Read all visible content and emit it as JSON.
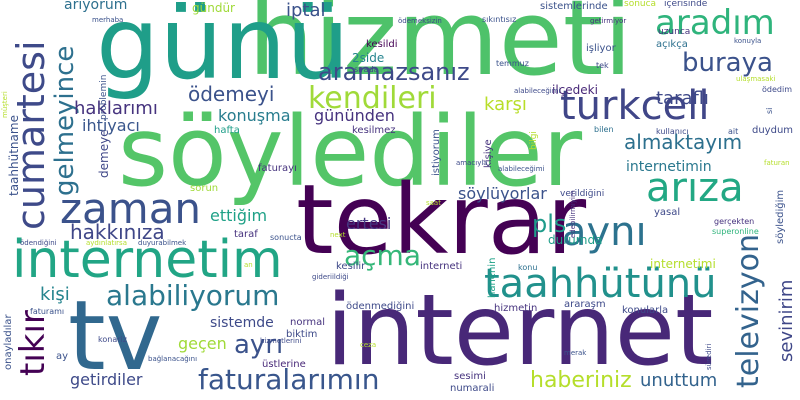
{
  "words": [
    {
      "text": "hizmeti",
      "color": "#4ec26a"
    },
    {
      "text": "günü",
      "color": "#1f9e89"
    },
    {
      "text": "söylediler",
      "color": "#54c568"
    },
    {
      "text": "tekrar",
      "color": "#440154"
    },
    {
      "text": "internet",
      "color": "#482878"
    },
    {
      "text": "tv",
      "color": "#31688e"
    },
    {
      "text": "internetim",
      "color": "#21a585"
    },
    {
      "text": "cumartesi",
      "color": "#3e4a89"
    },
    {
      "text": "zaman",
      "color": "#3b528b"
    },
    {
      "text": "turkcell",
      "color": "#404688"
    },
    {
      "text": "arıza",
      "color": "#22a884"
    },
    {
      "text": "aynı",
      "color": "#2c728e"
    },
    {
      "text": "taahhütünü",
      "color": "#21918c"
    },
    {
      "text": "kendileri",
      "color": "#a0da39"
    },
    {
      "text": "alabiliyorum",
      "color": "#2a788e"
    },
    {
      "text": "faturalarımın",
      "color": "#39568c"
    },
    {
      "text": "aradım",
      "color": "#2fb47c"
    },
    {
      "text": "buraya",
      "color": "#3b528b"
    },
    {
      "text": "aramazsanız",
      "color": "#3e4a89"
    },
    {
      "text": "gelmeyince",
      "color": "#2d708e"
    },
    {
      "text": "televizyon",
      "color": "#33638d"
    },
    {
      "text": "açma",
      "color": "#35b779"
    },
    {
      "text": "tıkır",
      "color": "#440154"
    },
    {
      "text": "ayrı",
      "color": "#3b528b"
    },
    {
      "text": "hakkınıza",
      "color": "#3f4788"
    },
    {
      "text": "haberiniz",
      "color": "#b5de2b"
    },
    {
      "text": "almaktayım",
      "color": "#2d708e"
    },
    {
      "text": "sevinirim",
      "color": "#3f4788"
    },
    {
      "text": "ödemeyi",
      "color": "#3b528b"
    },
    {
      "text": "haklarımı",
      "color": "#46337e"
    },
    {
      "text": "ihtiyacı",
      "color": "#39568c"
    },
    {
      "text": "konuşma",
      "color": "#287d8e"
    },
    {
      "text": "gününden",
      "color": "#46327e"
    },
    {
      "text": "karşı",
      "color": "#b8de29"
    },
    {
      "text": "taraflı",
      "color": "#3e4989"
    },
    {
      "text": "internetimin",
      "color": "#2a788e"
    },
    {
      "text": "söylüyorlar",
      "color": "#3b528b"
    },
    {
      "text": "ertesi",
      "color": "#453781"
    },
    {
      "text": "pls",
      "color": "#1e9b8a"
    },
    {
      "text": "ettiğim",
      "color": "#1fa187"
    },
    {
      "text": "kişi",
      "color": "#25848e"
    },
    {
      "text": "sistemde",
      "color": "#3e4a89"
    },
    {
      "text": "geçen",
      "color": "#a0da39"
    },
    {
      "text": "getirdiler",
      "color": "#3e4a89"
    },
    {
      "text": "unuttum",
      "color": "#33638d"
    },
    {
      "text": "iptal",
      "color": "#3b528b"
    },
    {
      "text": "ariyorum",
      "color": "#2d708e"
    },
    {
      "text": "gündür",
      "color": "#a0da39"
    },
    {
      "text": "kesildi",
      "color": "#440154"
    },
    {
      "text": "2side",
      "color": "#25848e"
    },
    {
      "text": "sırada",
      "color": "#3e4a89"
    },
    {
      "text": "ilçedeki",
      "color": "#482878"
    },
    {
      "text": "temmuz",
      "color": "#3b528b"
    },
    {
      "text": "kesilmez",
      "color": "#46337e"
    },
    {
      "text": "hafta",
      "color": "#1f9e89"
    },
    {
      "text": "taahhütname",
      "color": "#3b528b"
    },
    {
      "text": "demeye",
      "color": "#3f4788"
    },
    {
      "text": "faturayı",
      "color": "#46337e"
    },
    {
      "text": "sorun",
      "color": "#a0da39"
    },
    {
      "text": "taraf",
      "color": "#46327e"
    },
    {
      "text": "durumda",
      "color": "#1f9e89"
    },
    {
      "text": "yasal",
      "color": "#3e4989"
    },
    {
      "text": "gerçekten",
      "color": "#46327e"
    },
    {
      "text": "superonline",
      "color": "#2fb47c"
    },
    {
      "text": "söylediğim",
      "color": "#3b528b"
    },
    {
      "text": "kesilir",
      "color": "#3e4a89"
    },
    {
      "text": "interneti",
      "color": "#46337e"
    },
    {
      "text": "konu",
      "color": "#2d708e"
    },
    {
      "text": "internetimi",
      "color": "#b5de2b"
    },
    {
      "text": "hanenin",
      "color": "#1fa187"
    },
    {
      "text": "araraşm",
      "color": "#3e4a89"
    },
    {
      "text": "konularla",
      "color": "#3e4a89"
    },
    {
      "text": "hizmetin",
      "color": "#46337e"
    },
    {
      "text": "sonucta",
      "color": "#3b528b"
    },
    {
      "text": "ödenmediğini",
      "color": "#3e4a89"
    },
    {
      "text": "normal",
      "color": "#46337e"
    },
    {
      "text": "biktim",
      "color": "#3e4a89"
    },
    {
      "text": "faturamı",
      "color": "#3b528b"
    },
    {
      "text": "onayladılar",
      "color": "#3b528b"
    },
    {
      "text": "konariz",
      "color": "#3e4a89"
    },
    {
      "text": "üstlerine",
      "color": "#482878"
    },
    {
      "text": "sesimi",
      "color": "#46337e"
    },
    {
      "text": "numarali",
      "color": "#3e4a89"
    },
    {
      "text": "merhaba",
      "color": "#3b528b"
    },
    {
      "text": "problemin",
      "color": "#3b528b"
    },
    {
      "text": "ödemeksizin",
      "color": "#3e4a89"
    },
    {
      "text": "sıkıntısız",
      "color": "#3b528b"
    },
    {
      "text": "sistemlerinde",
      "color": "#3b528b"
    },
    {
      "text": "içerisinde",
      "color": "#3e4a89"
    },
    {
      "text": "sonuca",
      "color": "#b5de2b"
    },
    {
      "text": "uzunca",
      "color": "#46337e"
    },
    {
      "text": "açıkça",
      "color": "#2d708e"
    },
    {
      "text": "işliyor",
      "color": "#3b528b"
    },
    {
      "text": "tek",
      "color": "#3e4a89"
    },
    {
      "text": "getirmiyor",
      "color": "#46337e"
    },
    {
      "text": "konuyla",
      "color": "#3b528b"
    },
    {
      "text": "alabileceğimi",
      "color": "#3e4a89"
    },
    {
      "text": "bilgi",
      "color": "#b5de2b"
    },
    {
      "text": "istiyorum",
      "color": "#3b528b"
    },
    {
      "text": "kişiye",
      "color": "#46337e"
    },
    {
      "text": "amacıyla",
      "color": "#3e4a89"
    },
    {
      "text": "alabileceğimi",
      "color": "#3b528b"
    },
    {
      "text": "saat",
      "color": "#b5de2b"
    },
    {
      "text": "verildiğini",
      "color": "#3e4a89"
    },
    {
      "text": "edebilirmiyim",
      "color": "#46337e"
    },
    {
      "text": "bilen",
      "color": "#2d708e"
    },
    {
      "text": "kullanıcı",
      "color": "#3e4a89"
    },
    {
      "text": "ait",
      "color": "#3b528b"
    },
    {
      "text": "duydum",
      "color": "#3e4a89"
    },
    {
      "text": "si",
      "color": "#3b528b"
    },
    {
      "text": "ödedim",
      "color": "#3e4a89"
    },
    {
      "text": "ulaşmasaki",
      "color": "#b5de2b"
    },
    {
      "text": "faturan",
      "color": "#b5de2b"
    },
    {
      "text": "müşteri",
      "color": "#b5de2b"
    },
    {
      "text": "ödendiğini",
      "color": "#3e4a89"
    },
    {
      "text": "aydınlatırsa",
      "color": "#b5de2b"
    },
    {
      "text": "duyurabilmek",
      "color": "#3b528b"
    },
    {
      "text": "next",
      "color": "#b5de2b"
    },
    {
      "text": "gideriildiği",
      "color": "#3e4a89"
    },
    {
      "text": "an",
      "color": "#b5de2b"
    },
    {
      "text": "ay",
      "color": "#3b528b"
    },
    {
      "text": "ceza",
      "color": "#b5de2b"
    },
    {
      "text": "hizmetlerini",
      "color": "#3e4a89"
    },
    {
      "text": "bağlanacağını",
      "color": "#3b528b"
    },
    {
      "text": "merak",
      "color": "#3b528b"
    },
    {
      "text": "sürediri",
      "color": "#3e4a89"
    }
  ]
}
